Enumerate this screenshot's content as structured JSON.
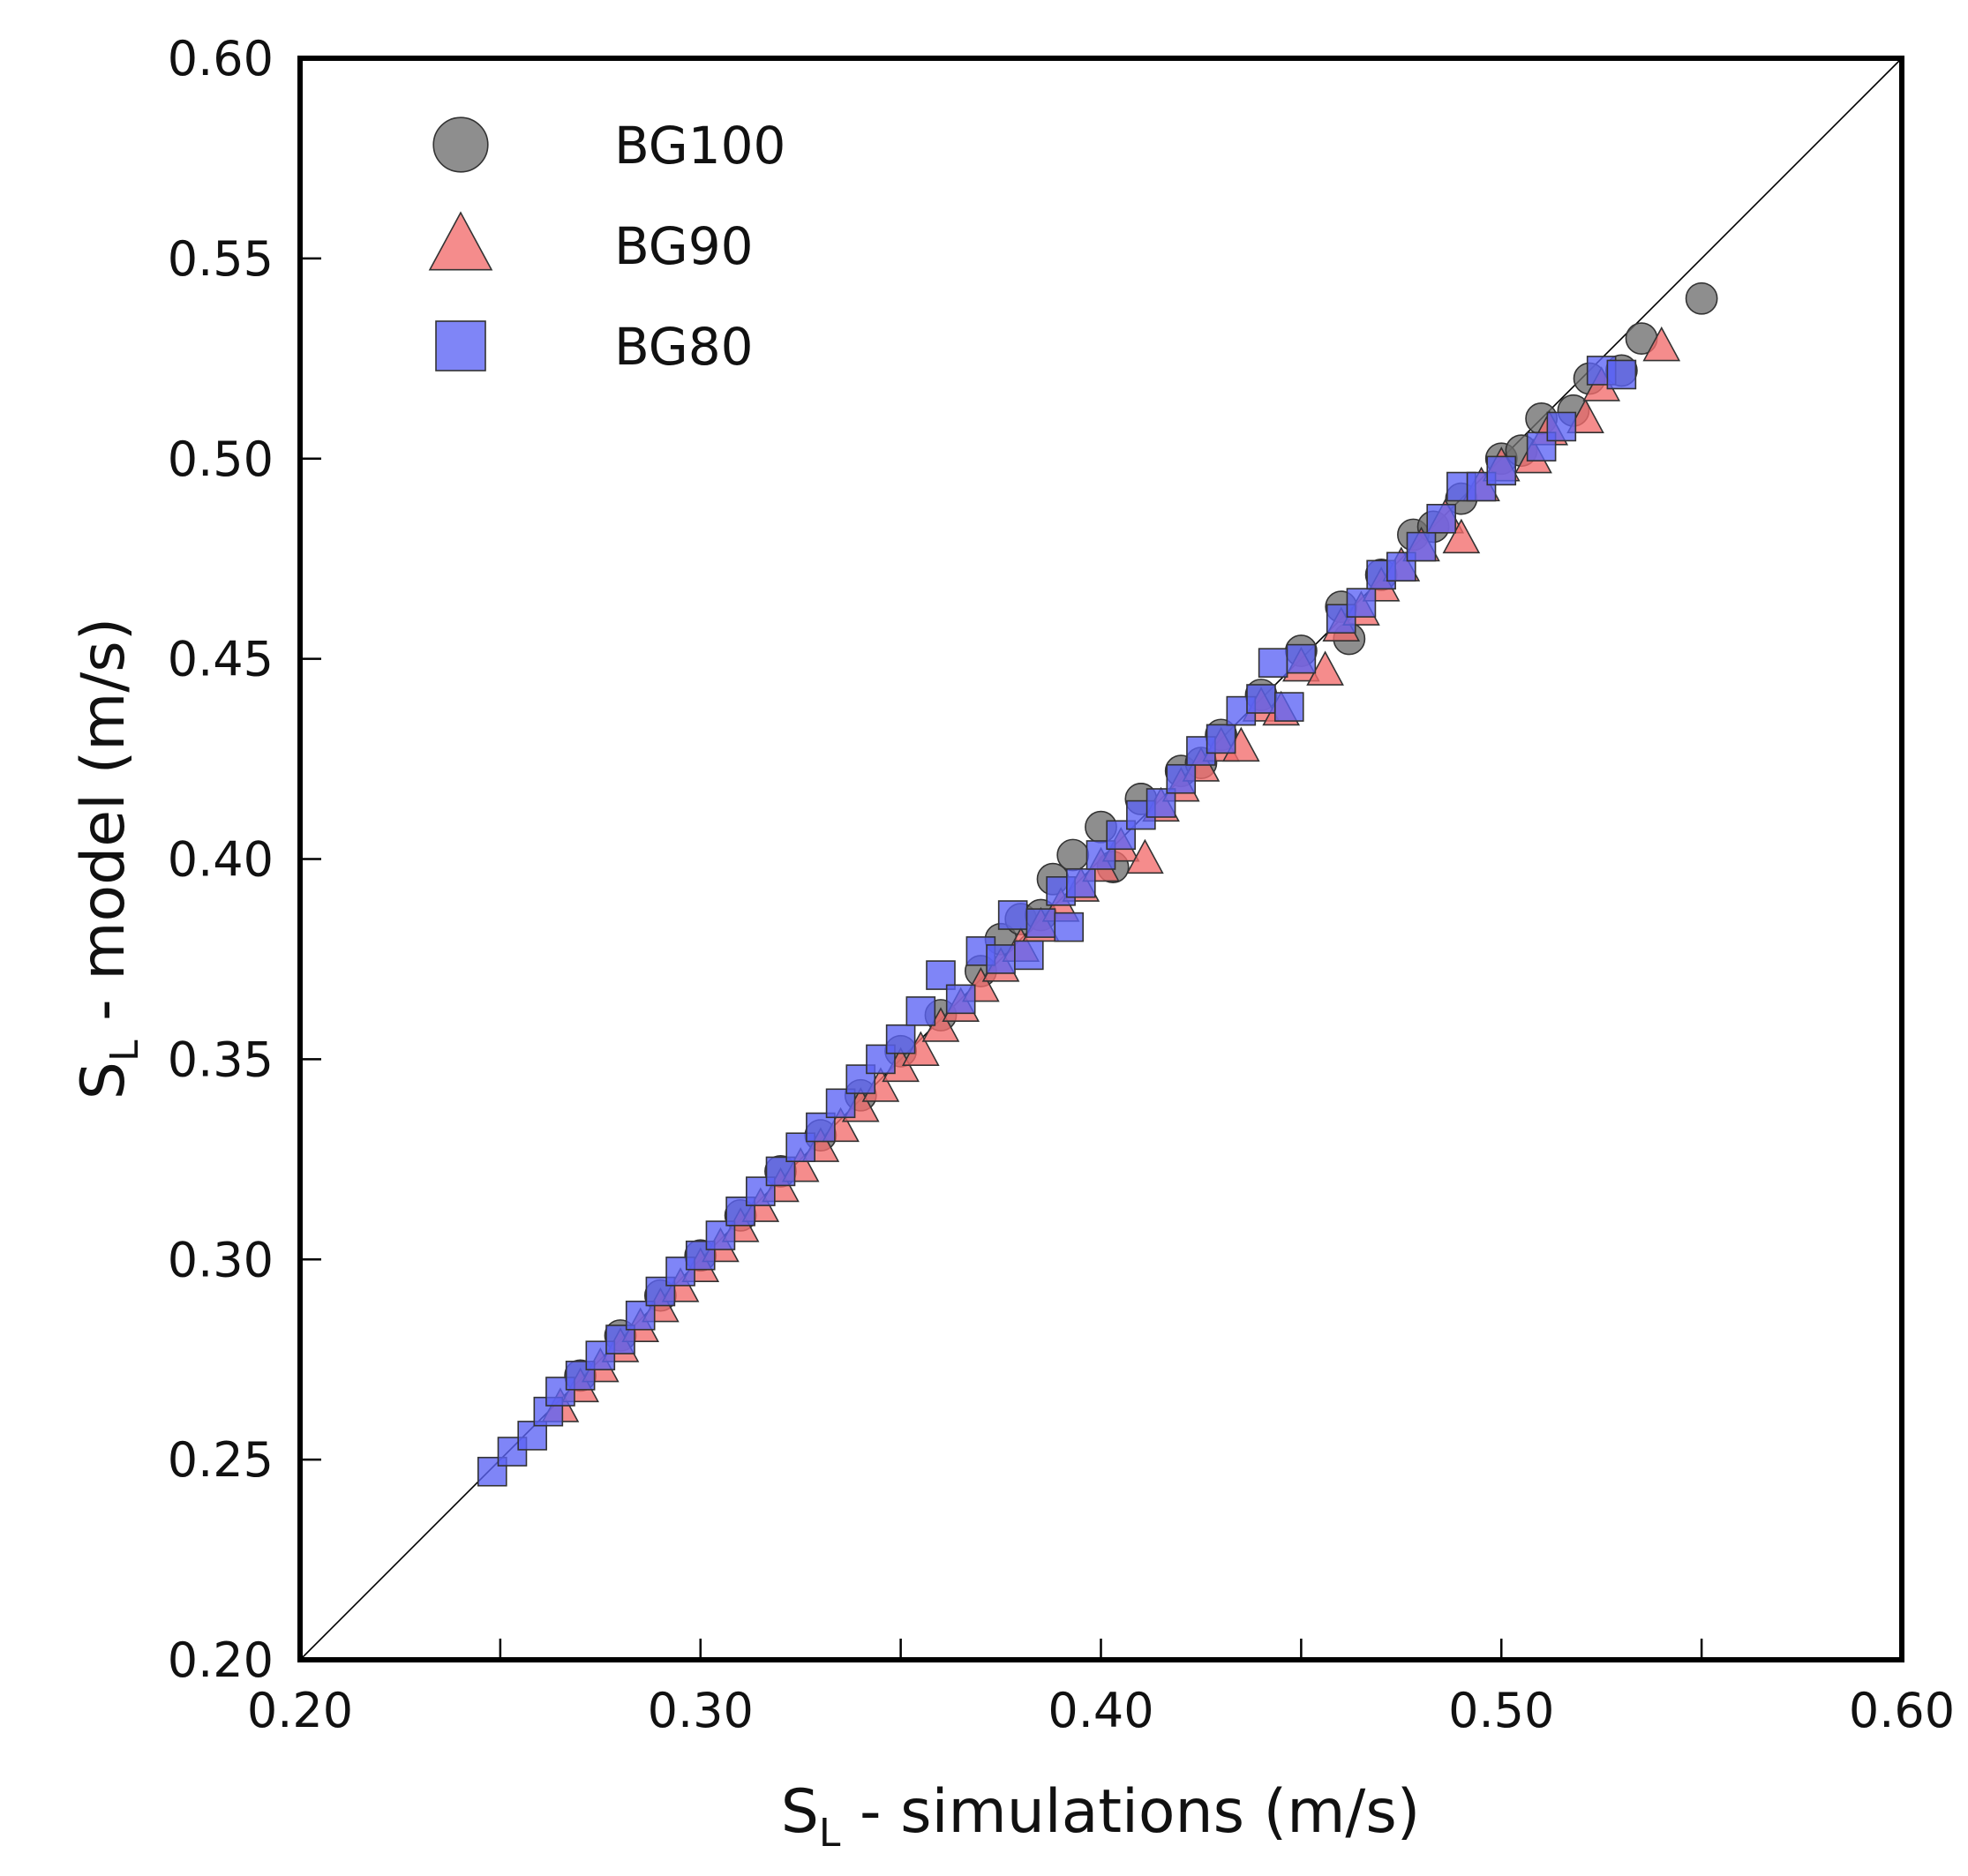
{
  "chart_data": {
    "type": "scatter",
    "title": "",
    "xlabel": {
      "main": "S",
      "sub": "L",
      "rest": " - simulations (m/s)"
    },
    "ylabel": {
      "main": "S",
      "sub": "L",
      "rest": " - model (m/s)"
    },
    "xlim": [
      0.2,
      0.6
    ],
    "ylim": [
      0.2,
      0.6
    ],
    "x_ticks": [
      0.2,
      0.25,
      0.3,
      0.35,
      0.4,
      0.45,
      0.5,
      0.55,
      0.6
    ],
    "x_tick_labels": [
      "0.20",
      "",
      "0.30",
      "",
      "0.40",
      "",
      "0.50",
      "",
      "0.60"
    ],
    "y_ticks": [
      0.2,
      0.25,
      0.3,
      0.35,
      0.4,
      0.45,
      0.5,
      0.55,
      0.6
    ],
    "y_tick_labels": [
      "0.20",
      "0.25",
      "0.30",
      "0.35",
      "0.40",
      "0.45",
      "0.50",
      "0.55",
      "0.60"
    ],
    "grid": false,
    "reference_line": "y = x",
    "legend_position": "top-left",
    "series": [
      {
        "name": "BG100",
        "marker": "circle",
        "color": "#6e6e6e",
        "points": [
          [
            0.27,
            0.271
          ],
          [
            0.28,
            0.281
          ],
          [
            0.29,
            0.291
          ],
          [
            0.3,
            0.301
          ],
          [
            0.31,
            0.311
          ],
          [
            0.32,
            0.322
          ],
          [
            0.33,
            0.331
          ],
          [
            0.34,
            0.341
          ],
          [
            0.35,
            0.352
          ],
          [
            0.36,
            0.361
          ],
          [
            0.37,
            0.372
          ],
          [
            0.375,
            0.38
          ],
          [
            0.38,
            0.385
          ],
          [
            0.385,
            0.386
          ],
          [
            0.388,
            0.395
          ],
          [
            0.393,
            0.401
          ],
          [
            0.4,
            0.408
          ],
          [
            0.403,
            0.398
          ],
          [
            0.41,
            0.415
          ],
          [
            0.42,
            0.422
          ],
          [
            0.425,
            0.424
          ],
          [
            0.43,
            0.431
          ],
          [
            0.44,
            0.441
          ],
          [
            0.45,
            0.452
          ],
          [
            0.46,
            0.463
          ],
          [
            0.462,
            0.455
          ],
          [
            0.47,
            0.471
          ],
          [
            0.478,
            0.481
          ],
          [
            0.483,
            0.483
          ],
          [
            0.49,
            0.49
          ],
          [
            0.5,
            0.5
          ],
          [
            0.505,
            0.502
          ],
          [
            0.51,
            0.51
          ],
          [
            0.518,
            0.512
          ],
          [
            0.522,
            0.52
          ],
          [
            0.53,
            0.522
          ],
          [
            0.535,
            0.53
          ],
          [
            0.55,
            0.54
          ]
        ]
      },
      {
        "name": "BG90",
        "marker": "triangle",
        "color": "#f26b6b",
        "points": [
          [
            0.265,
            0.263
          ],
          [
            0.27,
            0.268
          ],
          [
            0.275,
            0.273
          ],
          [
            0.28,
            0.278
          ],
          [
            0.285,
            0.283
          ],
          [
            0.29,
            0.288
          ],
          [
            0.295,
            0.293
          ],
          [
            0.3,
            0.298
          ],
          [
            0.305,
            0.303
          ],
          [
            0.31,
            0.308
          ],
          [
            0.315,
            0.313
          ],
          [
            0.32,
            0.318
          ],
          [
            0.325,
            0.323
          ],
          [
            0.33,
            0.328
          ],
          [
            0.335,
            0.333
          ],
          [
            0.34,
            0.338
          ],
          [
            0.345,
            0.343
          ],
          [
            0.35,
            0.348
          ],
          [
            0.355,
            0.352
          ],
          [
            0.36,
            0.358
          ],
          [
            0.365,
            0.363
          ],
          [
            0.37,
            0.368
          ],
          [
            0.375,
            0.373
          ],
          [
            0.38,
            0.378
          ],
          [
            0.385,
            0.383
          ],
          [
            0.39,
            0.388
          ],
          [
            0.395,
            0.393
          ],
          [
            0.4,
            0.398
          ],
          [
            0.405,
            0.403
          ],
          [
            0.411,
            0.4
          ],
          [
            0.415,
            0.413
          ],
          [
            0.42,
            0.418
          ],
          [
            0.425,
            0.423
          ],
          [
            0.43,
            0.428
          ],
          [
            0.435,
            0.428
          ],
          [
            0.44,
            0.438
          ],
          [
            0.445,
            0.437
          ],
          [
            0.45,
            0.448
          ],
          [
            0.456,
            0.447
          ],
          [
            0.46,
            0.458
          ],
          [
            0.465,
            0.462
          ],
          [
            0.47,
            0.468
          ],
          [
            0.475,
            0.473
          ],
          [
            0.48,
            0.478
          ],
          [
            0.486,
            0.485
          ],
          [
            0.49,
            0.48
          ],
          [
            0.495,
            0.493
          ],
          [
            0.5,
            0.498
          ],
          [
            0.508,
            0.5
          ],
          [
            0.512,
            0.507
          ],
          [
            0.521,
            0.51
          ],
          [
            0.525,
            0.518
          ],
          [
            0.54,
            0.528
          ]
        ]
      },
      {
        "name": "BG80",
        "marker": "square",
        "color": "#5b63f5",
        "points": [
          [
            0.248,
            0.247
          ],
          [
            0.253,
            0.252
          ],
          [
            0.258,
            0.256
          ],
          [
            0.262,
            0.262
          ],
          [
            0.265,
            0.267
          ],
          [
            0.27,
            0.271
          ],
          [
            0.275,
            0.276
          ],
          [
            0.28,
            0.28
          ],
          [
            0.285,
            0.286
          ],
          [
            0.29,
            0.292
          ],
          [
            0.295,
            0.297
          ],
          [
            0.3,
            0.301
          ],
          [
            0.305,
            0.306
          ],
          [
            0.31,
            0.312
          ],
          [
            0.315,
            0.317
          ],
          [
            0.32,
            0.322
          ],
          [
            0.325,
            0.328
          ],
          [
            0.33,
            0.333
          ],
          [
            0.335,
            0.339
          ],
          [
            0.34,
            0.345
          ],
          [
            0.345,
            0.35
          ],
          [
            0.35,
            0.355
          ],
          [
            0.355,
            0.362
          ],
          [
            0.36,
            0.371
          ],
          [
            0.365,
            0.365
          ],
          [
            0.37,
            0.377
          ],
          [
            0.375,
            0.375
          ],
          [
            0.378,
            0.386
          ],
          [
            0.382,
            0.376
          ],
          [
            0.385,
            0.384
          ],
          [
            0.39,
            0.392
          ],
          [
            0.392,
            0.383
          ],
          [
            0.395,
            0.394
          ],
          [
            0.4,
            0.401
          ],
          [
            0.405,
            0.406
          ],
          [
            0.41,
            0.411
          ],
          [
            0.415,
            0.414
          ],
          [
            0.42,
            0.42
          ],
          [
            0.425,
            0.427
          ],
          [
            0.43,
            0.43
          ],
          [
            0.435,
            0.437
          ],
          [
            0.44,
            0.44
          ],
          [
            0.443,
            0.449
          ],
          [
            0.447,
            0.438
          ],
          [
            0.45,
            0.45
          ],
          [
            0.46,
            0.46
          ],
          [
            0.465,
            0.464
          ],
          [
            0.47,
            0.471
          ],
          [
            0.475,
            0.473
          ],
          [
            0.48,
            0.478
          ],
          [
            0.485,
            0.485
          ],
          [
            0.49,
            0.493
          ],
          [
            0.495,
            0.493
          ],
          [
            0.5,
            0.497
          ],
          [
            0.51,
            0.503
          ],
          [
            0.515,
            0.508
          ],
          [
            0.525,
            0.522
          ],
          [
            0.53,
            0.521
          ]
        ]
      }
    ]
  }
}
